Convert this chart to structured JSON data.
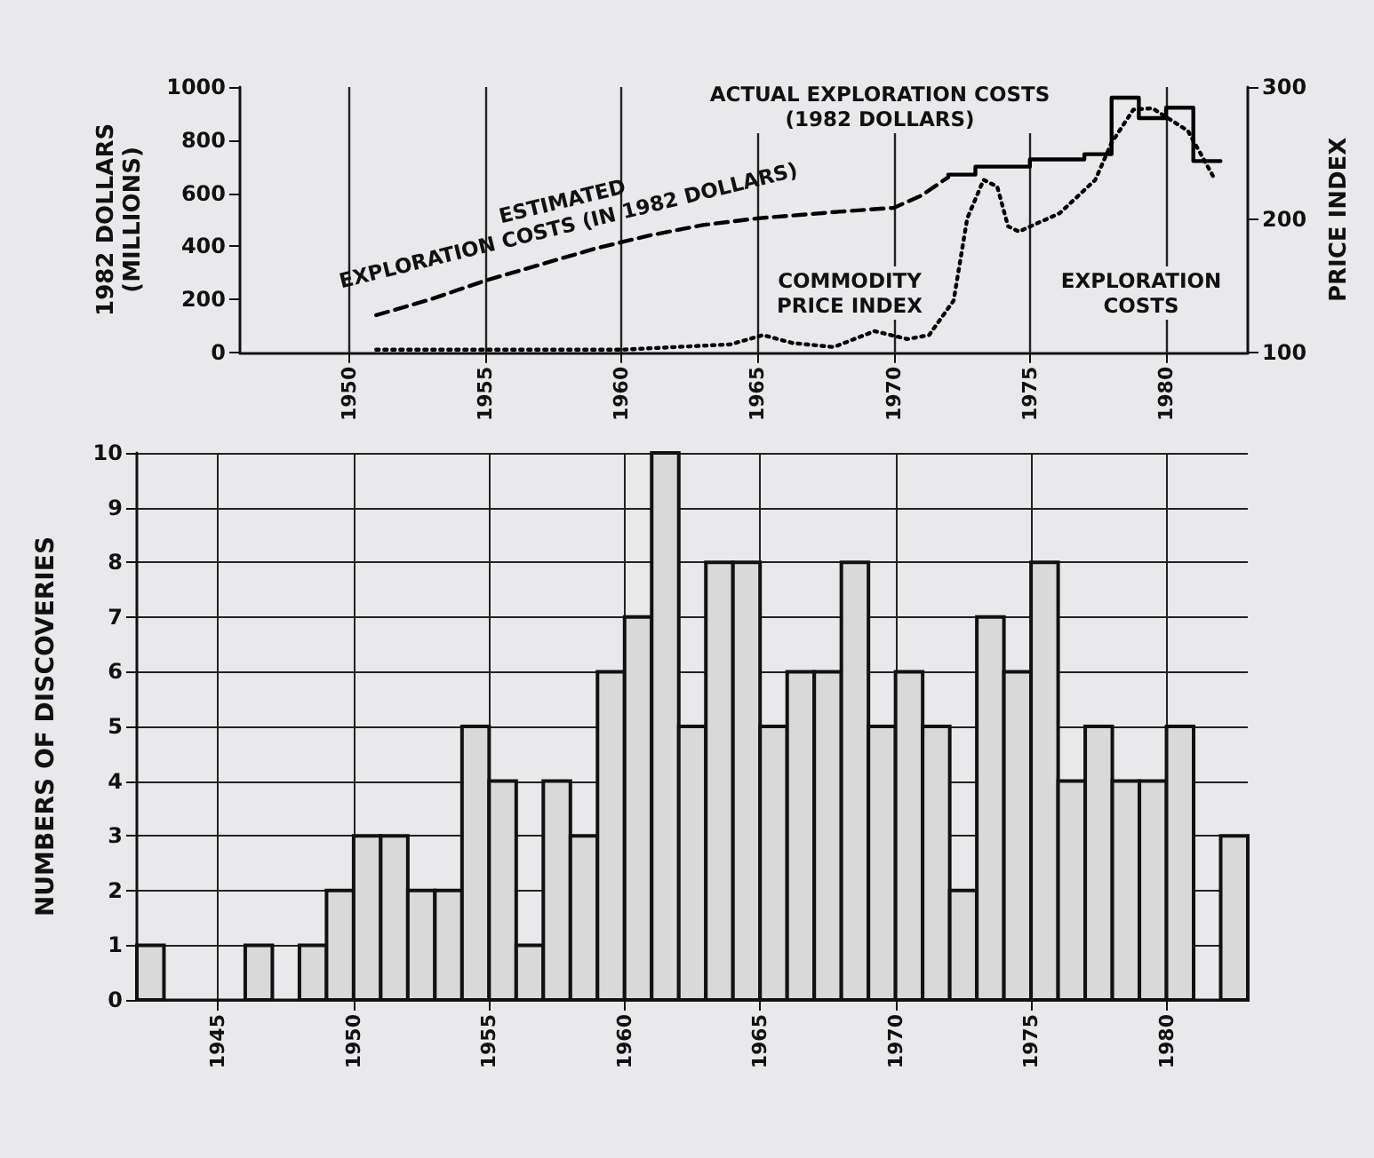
{
  "chart_data": [
    {
      "type": "line",
      "ylabel": "1982 DOLLARS\n(MILLIONS)",
      "y2label": "PRICE INDEX",
      "annotations": [
        "ACTUAL EXPLORATION COSTS\n(1982 DOLLARS)",
        "ESTIMATED\nEXPLORATION COSTS (IN 1982 DOLLARS)",
        "COMMODITY\nPRICE INDEX",
        "EXPLORATION\nCOSTS"
      ],
      "xlim": [
        1946,
        1983
      ],
      "xticks": [
        1950,
        1955,
        1960,
        1965,
        1970,
        1975,
        1980
      ],
      "ylim": [
        0,
        1000
      ],
      "yticks": [
        0,
        200,
        400,
        600,
        800,
        1000
      ],
      "y2lim": [
        100,
        300
      ],
      "y2ticks": [
        100,
        200,
        300
      ],
      "grid": "x",
      "marker": "none",
      "series": [
        {
          "type": "line",
          "line_style": "dashed",
          "color": "#000000",
          "x": [
            1951,
            1953,
            1955,
            1957,
            1959,
            1961,
            1963,
            1965,
            1968,
            1970,
            1971,
            1972
          ],
          "values": [
            140,
            200,
            270,
            330,
            390,
            440,
            480,
            505,
            530,
            545,
            590,
            660
          ]
        },
        {
          "type": "step",
          "line_style": "solid",
          "color": "#000000",
          "x": [
            1972,
            1973,
            1974,
            1975,
            1976,
            1977,
            1978,
            1979,
            1980,
            1981,
            1982
          ],
          "values": [
            670,
            700,
            700,
            727,
            727,
            747,
            960,
            883,
            922,
            721,
            721
          ]
        },
        {
          "type": "line",
          "line_style": "dotted",
          "axis": "y2",
          "color": "#000000",
          "x": [
            1951,
            1955,
            1960,
            1964,
            1965.2,
            1966.3,
            1967.8,
            1969.3,
            1970.5,
            1971.3,
            1972.2,
            1972.7,
            1973.3,
            1973.8,
            1974.2,
            1974.6,
            1976.1,
            1977.4,
            1978,
            1978.8,
            1979.5,
            1980.8,
            1981.8
          ],
          "values": [
            102,
            102,
            102,
            106,
            113,
            107,
            104,
            116,
            110,
            113,
            139,
            201,
            230,
            225,
            195,
            191,
            205,
            230,
            258,
            283,
            284,
            267,
            230
          ]
        }
      ]
    },
    {
      "type": "histogram",
      "ylabel": "NUMBERS OF DISCOVERIES",
      "color": "#d9d9d9",
      "bins": [
        1942,
        1943,
        1944,
        1945,
        1946,
        1947,
        1948,
        1949,
        1950,
        1951,
        1952,
        1953,
        1954,
        1955,
        1956,
        1957,
        1958,
        1959,
        1960,
        1961,
        1962,
        1963,
        1964,
        1965,
        1966,
        1967,
        1968,
        1969,
        1970,
        1971,
        1972,
        1973,
        1974,
        1975,
        1976,
        1977,
        1978,
        1979,
        1980,
        1981,
        1982,
        1983
      ],
      "values": [
        1,
        0,
        0,
        0,
        1,
        0,
        1,
        2,
        3,
        3,
        2,
        2,
        5,
        4,
        1,
        4,
        3,
        6,
        7,
        10,
        5,
        8,
        8,
        5,
        6,
        6,
        8,
        5,
        6,
        5,
        2,
        7,
        6,
        8,
        4,
        5,
        4,
        4,
        5,
        0,
        3
      ],
      "xlim": [
        1942,
        1983
      ],
      "xticks": [
        1945,
        1950,
        1955,
        1960,
        1965,
        1970,
        1975,
        1980
      ],
      "ylim": [
        0,
        10
      ],
      "yticks": [
        0,
        1,
        2,
        3,
        4,
        5,
        6,
        7,
        8,
        9,
        10
      ],
      "grid": true
    }
  ]
}
